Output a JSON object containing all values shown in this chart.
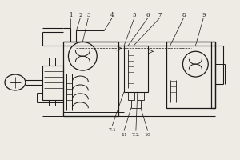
{
  "bg_color": "#eeebe4",
  "line_color": "#1a1a1a",
  "lw": 0.9,
  "fig_w": 3.0,
  "fig_h": 2.0,
  "dpi": 100
}
